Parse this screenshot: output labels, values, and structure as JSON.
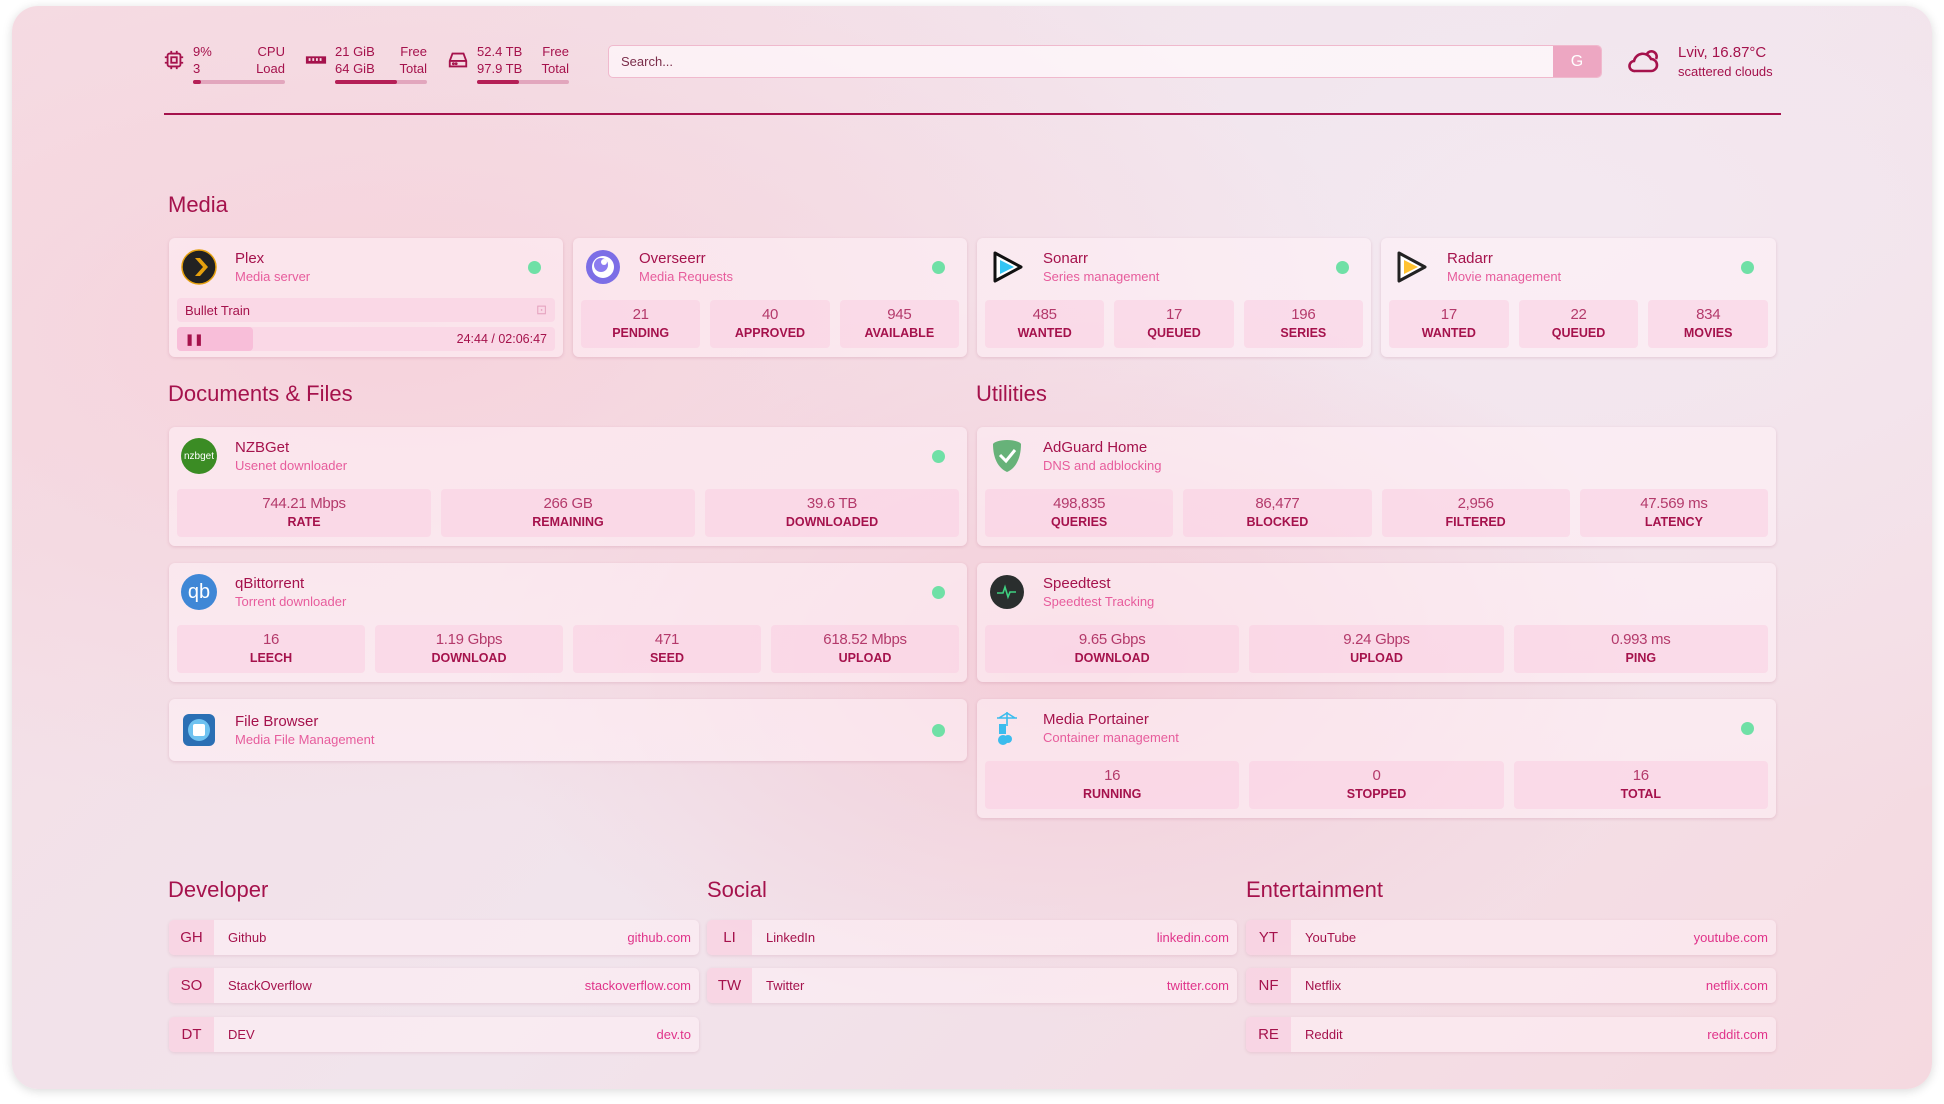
{
  "header": {
    "cpu": {
      "icon": "cpu-icon",
      "value": "9%",
      "sub": "3",
      "label": "CPU",
      "label2": "Load",
      "percent": 9
    },
    "memory": {
      "icon": "memory-icon",
      "value": "21 GiB",
      "sub": "64 GiB",
      "label": "Free",
      "label2": "Total",
      "percent": 67
    },
    "disk": {
      "icon": "disk-icon",
      "value": "52.4 TB",
      "sub": "97.9 TB",
      "label": "Free",
      "label2": "Total",
      "percent": 46
    },
    "search": {
      "placeholder": "Search...",
      "provider": "G"
    },
    "weather": {
      "icon": "cloud-icon",
      "location": "Lviv, 16.87°C",
      "condition": "scattered clouds"
    }
  },
  "sections": {
    "media": "Media",
    "docs": "Documents & Files",
    "utilities": "Utilities"
  },
  "media": [
    {
      "title": "Plex",
      "sub": "Media server",
      "now_playing": "Bullet Train",
      "time": "24:44 / 02:06:47",
      "progress": 0.2
    },
    {
      "title": "Overseerr",
      "sub": "Media Requests",
      "stats": [
        {
          "v": "21",
          "l": "PENDING"
        },
        {
          "v": "40",
          "l": "APPROVED"
        },
        {
          "v": "945",
          "l": "AVAILABLE"
        }
      ]
    },
    {
      "title": "Sonarr",
      "sub": "Series management",
      "stats": [
        {
          "v": "485",
          "l": "WANTED"
        },
        {
          "v": "17",
          "l": "QUEUED"
        },
        {
          "v": "196",
          "l": "SERIES"
        }
      ]
    },
    {
      "title": "Radarr",
      "sub": "Movie management",
      "stats": [
        {
          "v": "17",
          "l": "WANTED"
        },
        {
          "v": "22",
          "l": "QUEUED"
        },
        {
          "v": "834",
          "l": "MOVIES"
        }
      ]
    }
  ],
  "docs": [
    {
      "title": "NZBGet",
      "sub": "Usenet downloader",
      "icon_text": "nzbget",
      "stats": [
        {
          "v": "744.21 Mbps",
          "l": "RATE"
        },
        {
          "v": "266 GB",
          "l": "REMAINING"
        },
        {
          "v": "39.6 TB",
          "l": "DOWNLOADED"
        }
      ]
    },
    {
      "title": "qBittorrent",
      "sub": "Torrent downloader",
      "icon_text": "qb",
      "stats": [
        {
          "v": "16",
          "l": "LEECH"
        },
        {
          "v": "1.19 Gbps",
          "l": "DOWNLOAD"
        },
        {
          "v": "471",
          "l": "SEED"
        },
        {
          "v": "618.52 Mbps",
          "l": "UPLOAD"
        }
      ]
    },
    {
      "title": "File Browser",
      "sub": "Media File Management"
    }
  ],
  "utilities": [
    {
      "title": "AdGuard Home",
      "sub": "DNS and adblocking",
      "stats": [
        {
          "v": "498,835",
          "l": "QUERIES"
        },
        {
          "v": "86,477",
          "l": "BLOCKED"
        },
        {
          "v": "2,956",
          "l": "FILTERED"
        },
        {
          "v": "47.569 ms",
          "l": "LATENCY"
        }
      ]
    },
    {
      "title": "Speedtest",
      "sub": "Speedtest Tracking",
      "stats": [
        {
          "v": "9.65 Gbps",
          "l": "DOWNLOAD"
        },
        {
          "v": "9.24 Gbps",
          "l": "UPLOAD"
        },
        {
          "v": "0.993 ms",
          "l": "PING"
        }
      ]
    },
    {
      "title": "Media Portainer",
      "sub": "Container management",
      "stats": [
        {
          "v": "16",
          "l": "RUNNING"
        },
        {
          "v": "0",
          "l": "STOPPED"
        },
        {
          "v": "16",
          "l": "TOTAL"
        }
      ]
    }
  ],
  "bookmarks": [
    {
      "title": "Developer",
      "items": [
        {
          "ab": "GH",
          "name": "Github",
          "url": "github.com"
        },
        {
          "ab": "SO",
          "name": "StackOverflow",
          "url": "stackoverflow.com"
        },
        {
          "ab": "DT",
          "name": "DEV",
          "url": "dev.to"
        }
      ]
    },
    {
      "title": "Social",
      "items": [
        {
          "ab": "LI",
          "name": "LinkedIn",
          "url": "linkedin.com"
        },
        {
          "ab": "TW",
          "name": "Twitter",
          "url": "twitter.com"
        }
      ]
    },
    {
      "title": "Entertainment",
      "items": [
        {
          "ab": "YT",
          "name": "YouTube",
          "url": "youtube.com"
        },
        {
          "ab": "NF",
          "name": "Netflix",
          "url": "netflix.com"
        },
        {
          "ab": "RE",
          "name": "Reddit",
          "url": "reddit.com"
        }
      ]
    }
  ],
  "colors": {
    "accent": "#a5124c",
    "subtitle": "#e75c9c",
    "status_ok": "#6fe0a6"
  }
}
